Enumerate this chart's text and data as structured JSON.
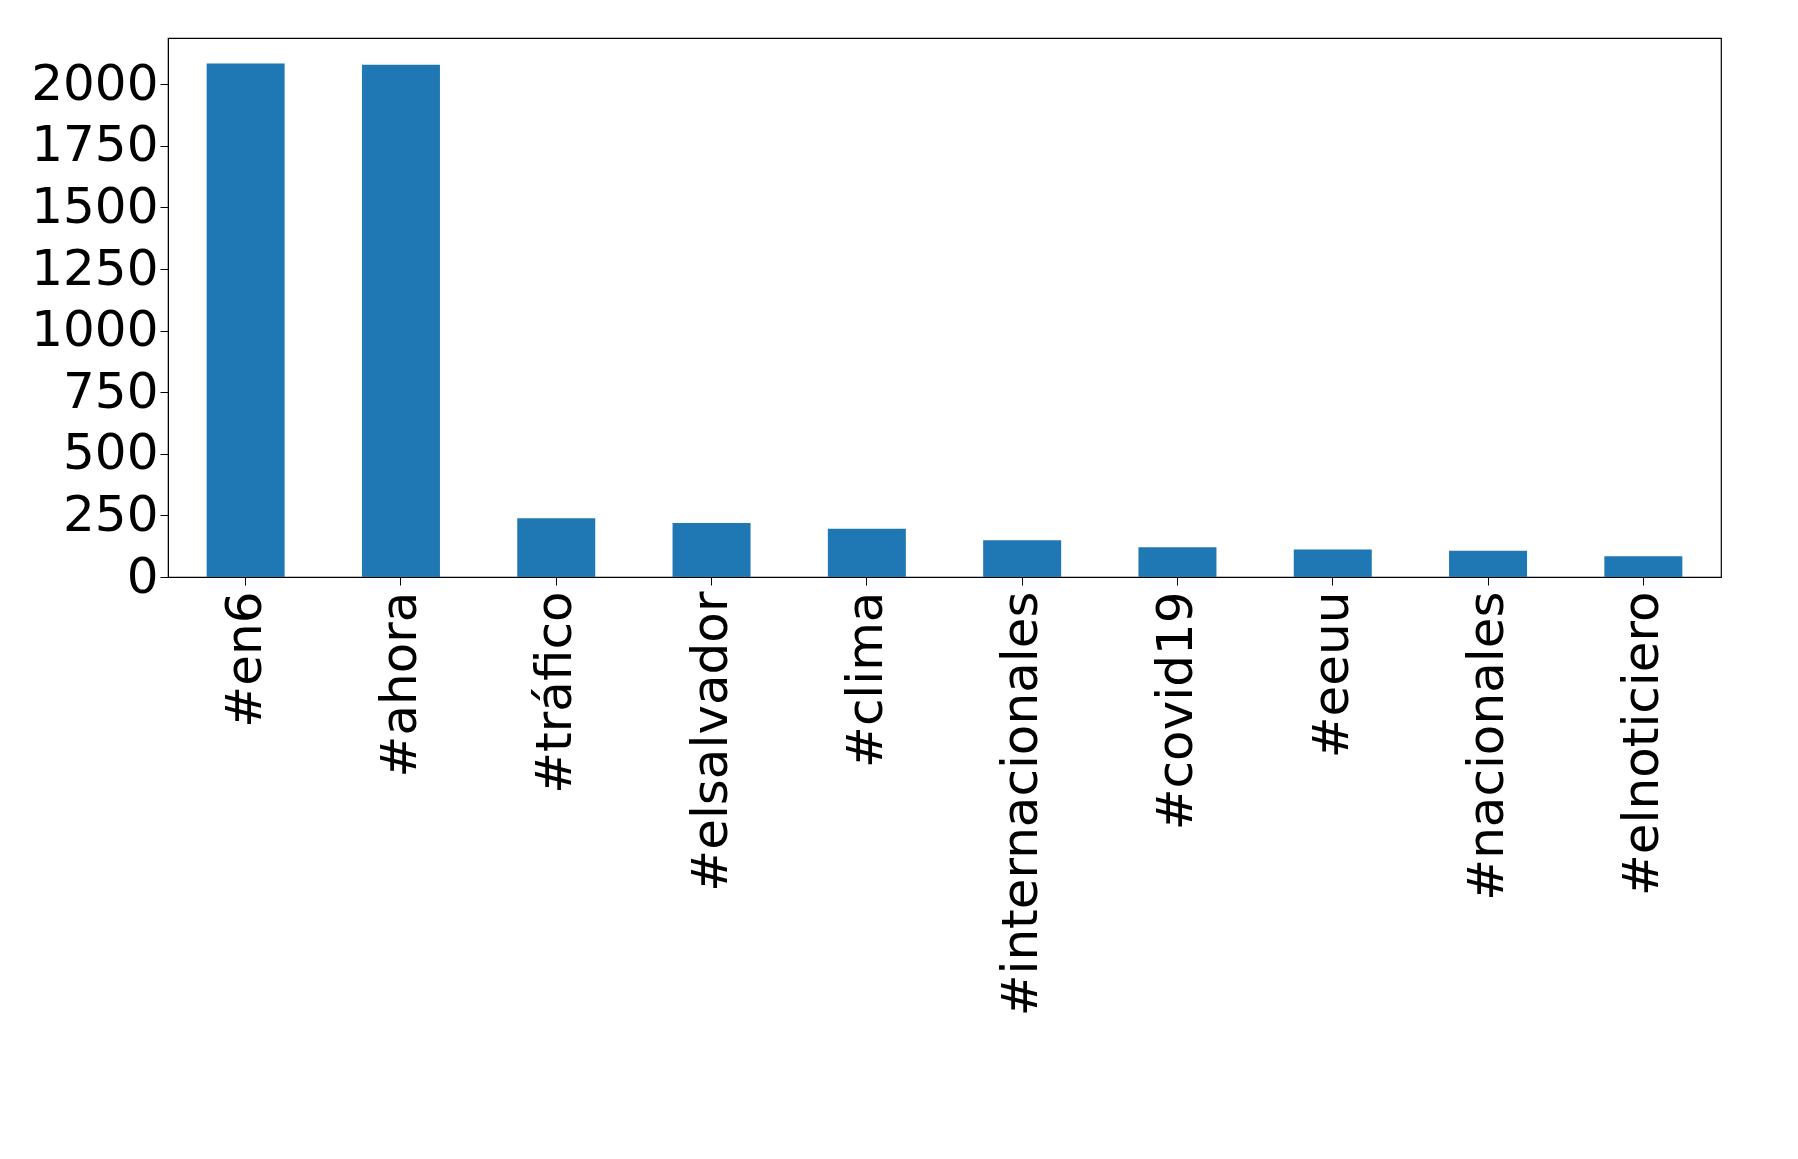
{
  "chart_data": {
    "type": "bar",
    "categories": [
      "#en6",
      "#ahora",
      "#tráfico",
      "#elsalvador",
      "#clima",
      "#internacionales",
      "#covid19",
      "#eeuu",
      "#nacionales",
      "#elnoticiero"
    ],
    "values": [
      2084,
      2079,
      238,
      219,
      196,
      149,
      121,
      112,
      107,
      84
    ],
    "color": "#1f77b4",
    "ylim": [
      0,
      2188
    ],
    "yticks": [
      0,
      250,
      500,
      750,
      1000,
      1250,
      1500,
      1750,
      2000
    ],
    "grid": false
  }
}
